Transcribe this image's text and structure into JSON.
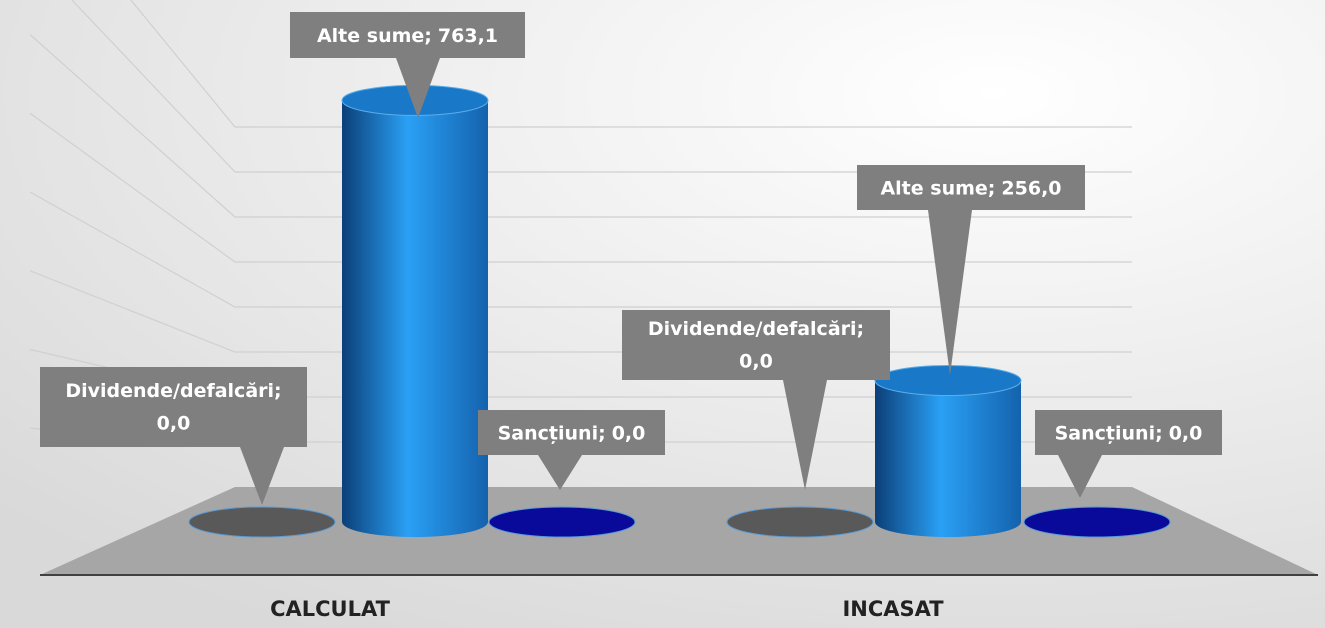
{
  "chart_data": {
    "type": "cylinder",
    "categories": [
      "CALCULAT",
      "INCASAT"
    ],
    "label_separator": ";",
    "series": [
      {
        "name": "Dividende/defalcări",
        "color": "#595959",
        "values": [
          0.0,
          0.0
        ],
        "value_labels": [
          "0,0",
          "0,0"
        ]
      },
      {
        "name": "Alte sume",
        "color": "#1f7fd6",
        "values": [
          763.1,
          256.0
        ],
        "value_labels": [
          "763,1",
          "256,0"
        ]
      },
      {
        "name": "Sancțiuni",
        "color": "#0a0a9a",
        "values": [
          0.0,
          0.0
        ],
        "value_labels": [
          "0,0",
          "0,0"
        ]
      }
    ],
    "ylim": [
      0,
      800
    ],
    "yticks": [
      0,
      100,
      200,
      300,
      400,
      500,
      600,
      700,
      800
    ],
    "grid": true
  }
}
